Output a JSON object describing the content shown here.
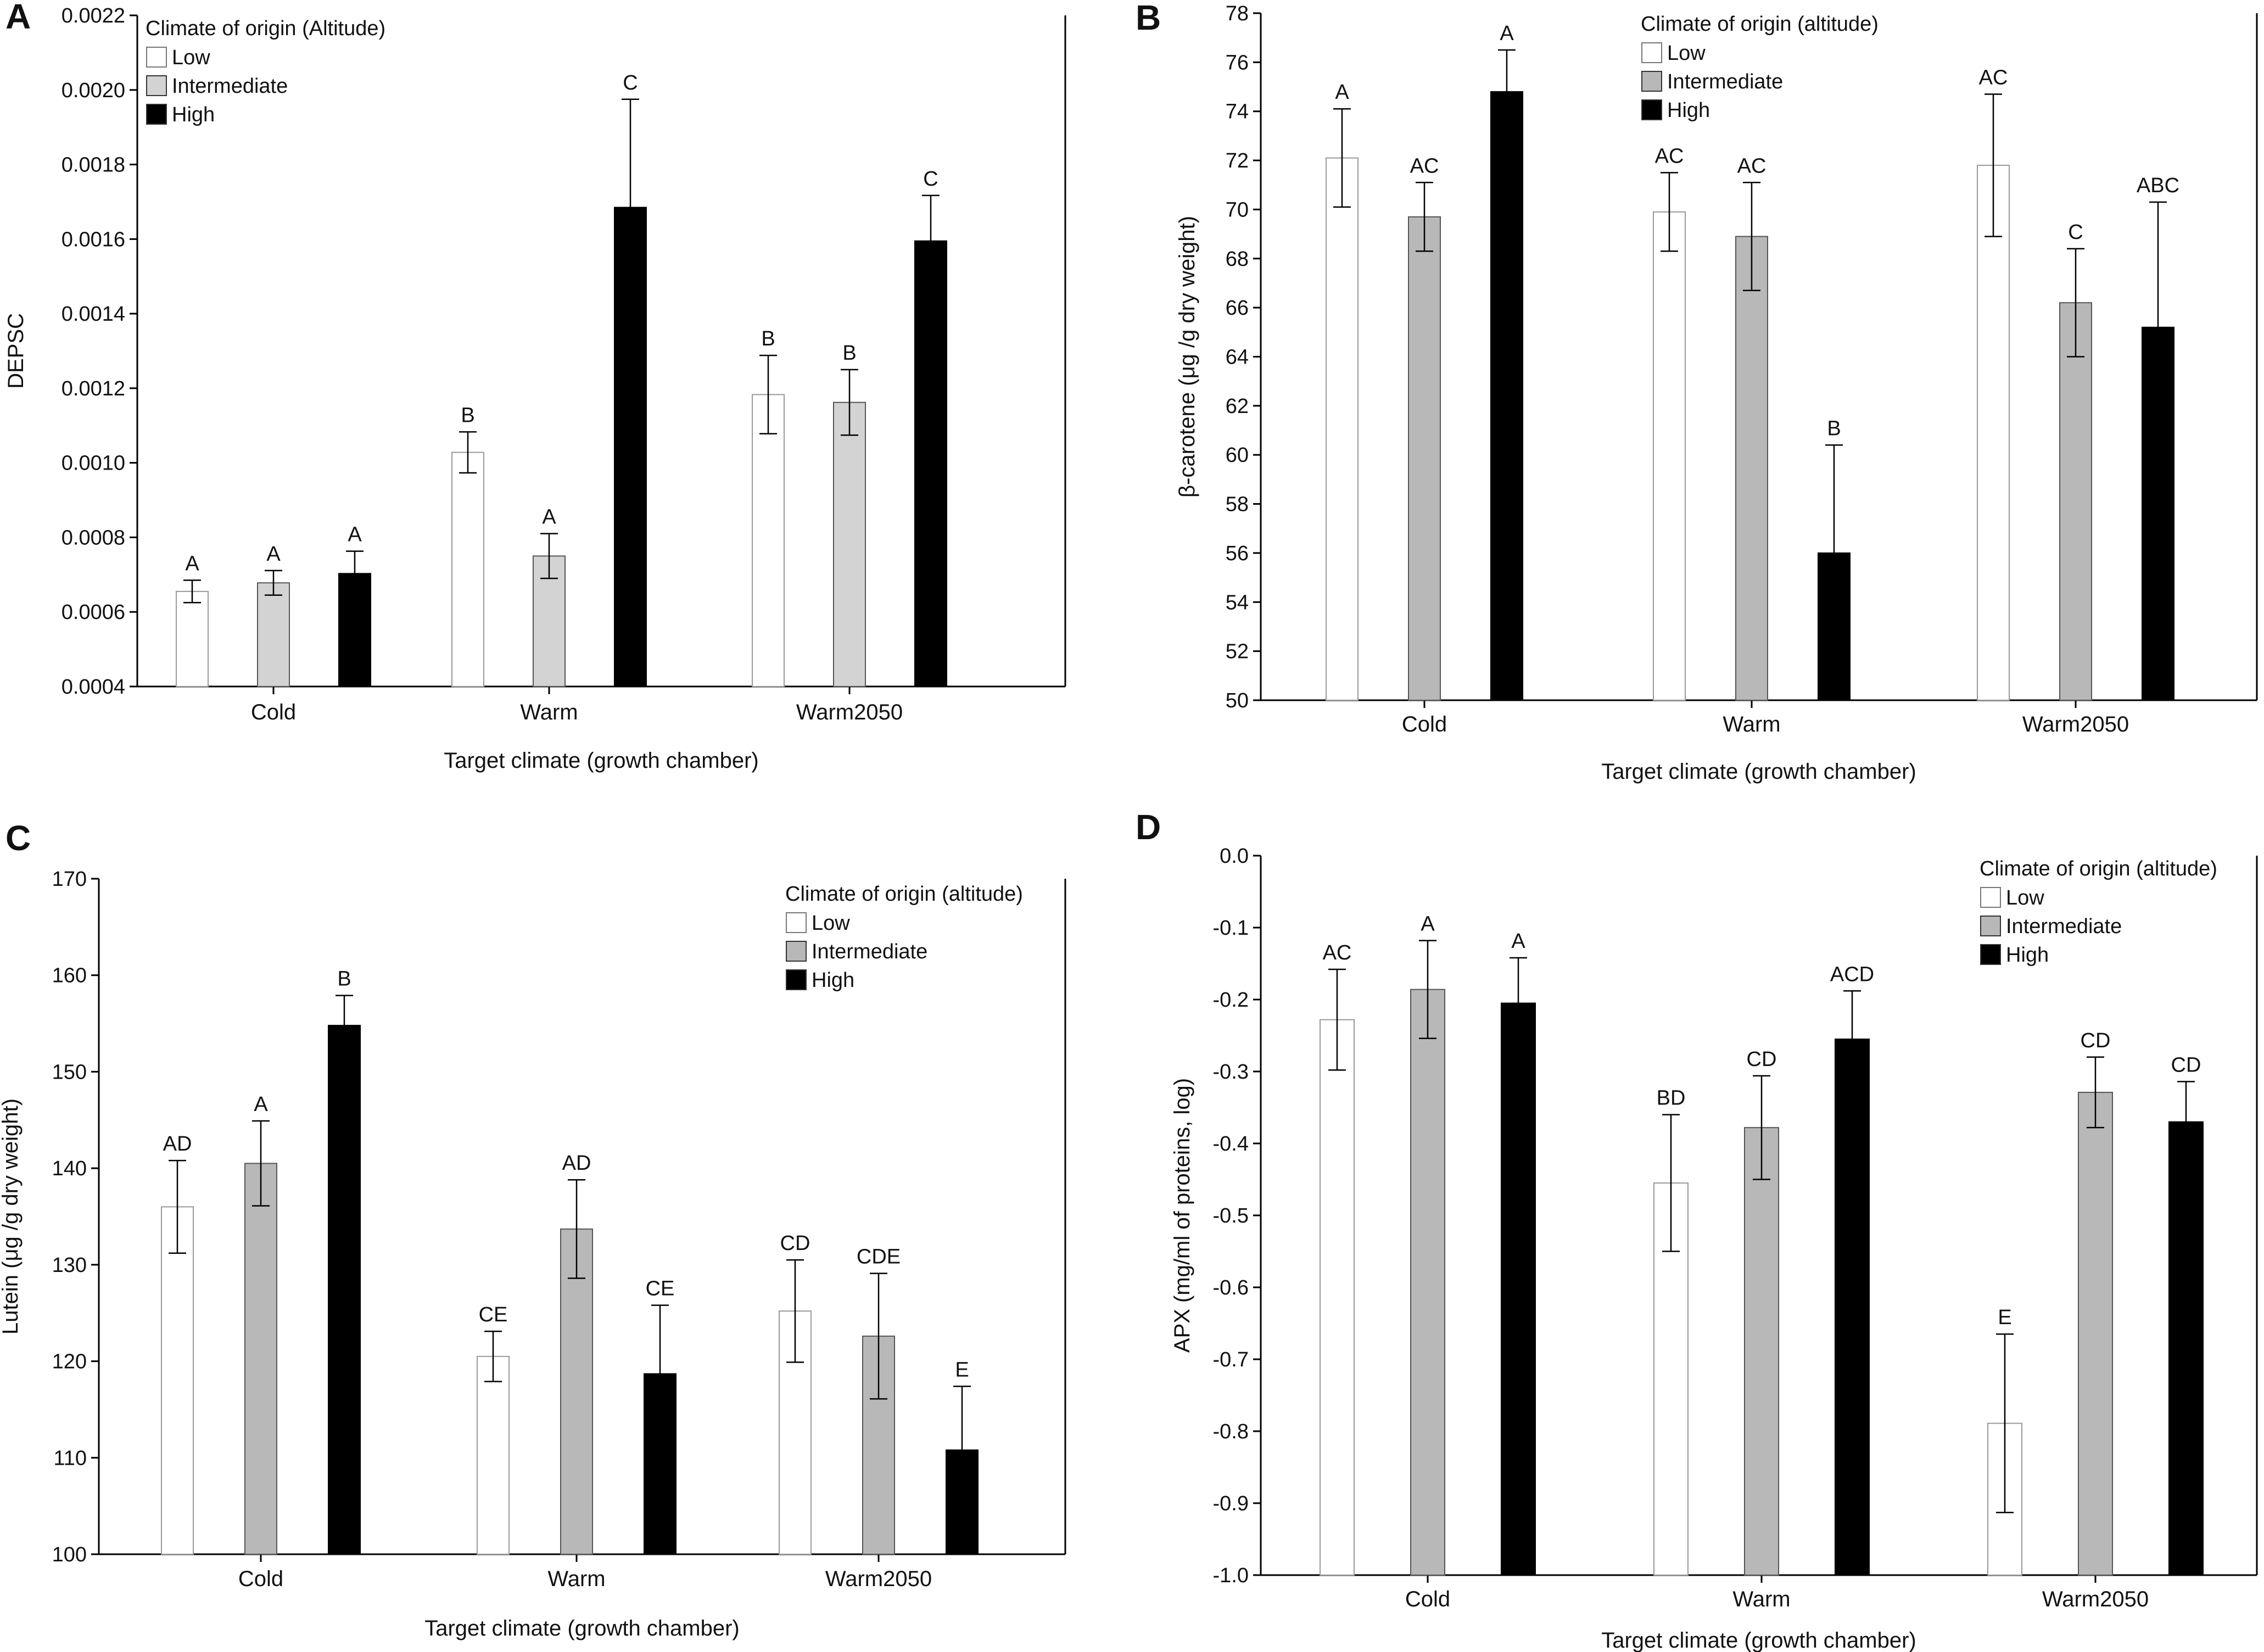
{
  "colors": {
    "Low": "#ffffff",
    "Intermediate": "#b8b8b8",
    "High": "#000000",
    "Intermediate_A": "#d3d3d3",
    "stroke": "#000000",
    "low_stroke": "#999999"
  },
  "chart_data": [
    {
      "panel": "A",
      "type": "bar",
      "categories": [
        "Cold",
        "Warm",
        "Warm2050"
      ],
      "xlabel": "Target climate (growth chamber)",
      "ylabel": "DEPSC",
      "ylim": [
        0.0004,
        0.0022
      ],
      "yticks": [
        0.0004,
        0.0006,
        0.0008,
        0.001,
        0.0012,
        0.0014,
        0.0016,
        0.0018,
        0.002,
        0.0022
      ],
      "ytick_labels": [
        "0.0004",
        "0.0006",
        "0.0008",
        "0.0010",
        "0.0012",
        "0.0014",
        "0.0016",
        "0.0018",
        "0.0020",
        "0.0022"
      ],
      "legend": {
        "title": "Climate of origin (Altitude)",
        "placement": "top-left"
      },
      "series": [
        {
          "name": "Low",
          "values": [
            0.000655,
            0.001028,
            0.001183
          ],
          "err": [
            3e-05,
            5.5e-05,
            0.000105
          ],
          "labels": [
            "A",
            "B",
            "B"
          ]
        },
        {
          "name": "Intermediate",
          "values": [
            0.000678,
            0.00075,
            0.001162
          ],
          "err": [
            3.3e-05,
            6e-05,
            8.8e-05
          ],
          "labels": [
            "A",
            "A",
            "B"
          ]
        },
        {
          "name": "High",
          "values": [
            0.000703,
            0.001685,
            0.001595
          ],
          "err": [
            6e-05,
            0.00029,
            0.000122
          ],
          "labels": [
            "A",
            "C",
            "C"
          ]
        }
      ]
    },
    {
      "panel": "B",
      "type": "bar",
      "categories": [
        "Cold",
        "Warm",
        "Warm2050"
      ],
      "xlabel": "Target climate (growth chamber)",
      "ylabel": "β-carotene (μg /g dry weight)",
      "ylim": [
        50,
        78
      ],
      "yticks": [
        50,
        52,
        54,
        56,
        58,
        60,
        62,
        64,
        66,
        68,
        70,
        72,
        74,
        76,
        78
      ],
      "ytick_labels": [
        "50",
        "52",
        "54",
        "56",
        "58",
        "60",
        "62",
        "64",
        "66",
        "68",
        "70",
        "72",
        "74",
        "76",
        "78"
      ],
      "legend": {
        "title": "Climate of origin (altitude)",
        "placement": "top-center"
      },
      "series": [
        {
          "name": "Low",
          "values": [
            72.1,
            69.9,
            71.8
          ],
          "err": [
            2.0,
            1.6,
            2.9
          ],
          "labels": [
            "A",
            "AC",
            "AC"
          ]
        },
        {
          "name": "Intermediate",
          "values": [
            69.7,
            68.9,
            66.2
          ],
          "err": [
            1.4,
            2.2,
            2.2
          ],
          "labels": [
            "AC",
            "AC",
            "C"
          ]
        },
        {
          "name": "High",
          "values": [
            74.8,
            56.0,
            65.2
          ],
          "err": [
            1.7,
            4.4,
            5.1
          ],
          "labels": [
            "A",
            "B",
            "ABC"
          ]
        }
      ]
    },
    {
      "panel": "C",
      "type": "bar",
      "categories": [
        "Cold",
        "Warm",
        "Warm2050"
      ],
      "xlabel": "Target climate (growth chamber)",
      "ylabel": "Lutein (μg /g dry weight)",
      "ylim": [
        100,
        170
      ],
      "yticks": [
        100,
        110,
        120,
        130,
        140,
        150,
        160,
        170
      ],
      "ytick_labels": [
        "100",
        "110",
        "120",
        "130",
        "140",
        "150",
        "160",
        "170"
      ],
      "legend": {
        "title": "Climate of origin (altitude)",
        "placement": "top-right"
      },
      "series": [
        {
          "name": "Low",
          "values": [
            136.0,
            120.5,
            125.2
          ],
          "err": [
            4.8,
            2.6,
            5.3
          ],
          "labels": [
            "AD",
            "CE",
            "CD"
          ]
        },
        {
          "name": "Intermediate",
          "values": [
            140.5,
            133.7,
            122.6
          ],
          "err": [
            4.4,
            5.1,
            6.5
          ],
          "labels": [
            "A",
            "AD",
            "CDE"
          ]
        },
        {
          "name": "High",
          "values": [
            154.8,
            118.7,
            110.8
          ],
          "err": [
            3.1,
            7.1,
            6.6
          ],
          "labels": [
            "B",
            "CE",
            "E"
          ]
        }
      ]
    },
    {
      "panel": "D",
      "type": "bar",
      "categories": [
        "Cold",
        "Warm",
        "Warm2050"
      ],
      "xlabel": "Target climate (growth chamber)",
      "ylabel": "APX (mg/ml of proteins, log)",
      "ylim": [
        -1.0,
        0.0
      ],
      "yticks": [
        -1.0,
        -0.9,
        -0.8,
        -0.7,
        -0.6,
        -0.5,
        -0.4,
        -0.3,
        -0.2,
        -0.1,
        0.0
      ],
      "ytick_labels": [
        "-1.0",
        "-0.9",
        "-0.8",
        "-0.7",
        "-0.6",
        "-0.5",
        "-0.4",
        "-0.3",
        "-0.2",
        "-0.1",
        "0.0"
      ],
      "legend": {
        "title": "Climate of origin (altitude)",
        "placement": "top-right"
      },
      "series": [
        {
          "name": "Low",
          "values": [
            -0.228,
            -0.455,
            -0.789
          ],
          "err": [
            0.07,
            0.095,
            0.124
          ],
          "labels": [
            "AC",
            "BD",
            "E"
          ]
        },
        {
          "name": "Intermediate",
          "values": [
            -0.186,
            -0.378,
            -0.329
          ],
          "err": [
            0.068,
            0.072,
            0.049
          ],
          "labels": [
            "A",
            "CD",
            "CD"
          ]
        },
        {
          "name": "High",
          "values": [
            -0.205,
            -0.255,
            -0.37
          ],
          "err": [
            0.063,
            0.067,
            0.056
          ],
          "labels": [
            "A",
            "ACD",
            "CD"
          ]
        }
      ]
    }
  ]
}
